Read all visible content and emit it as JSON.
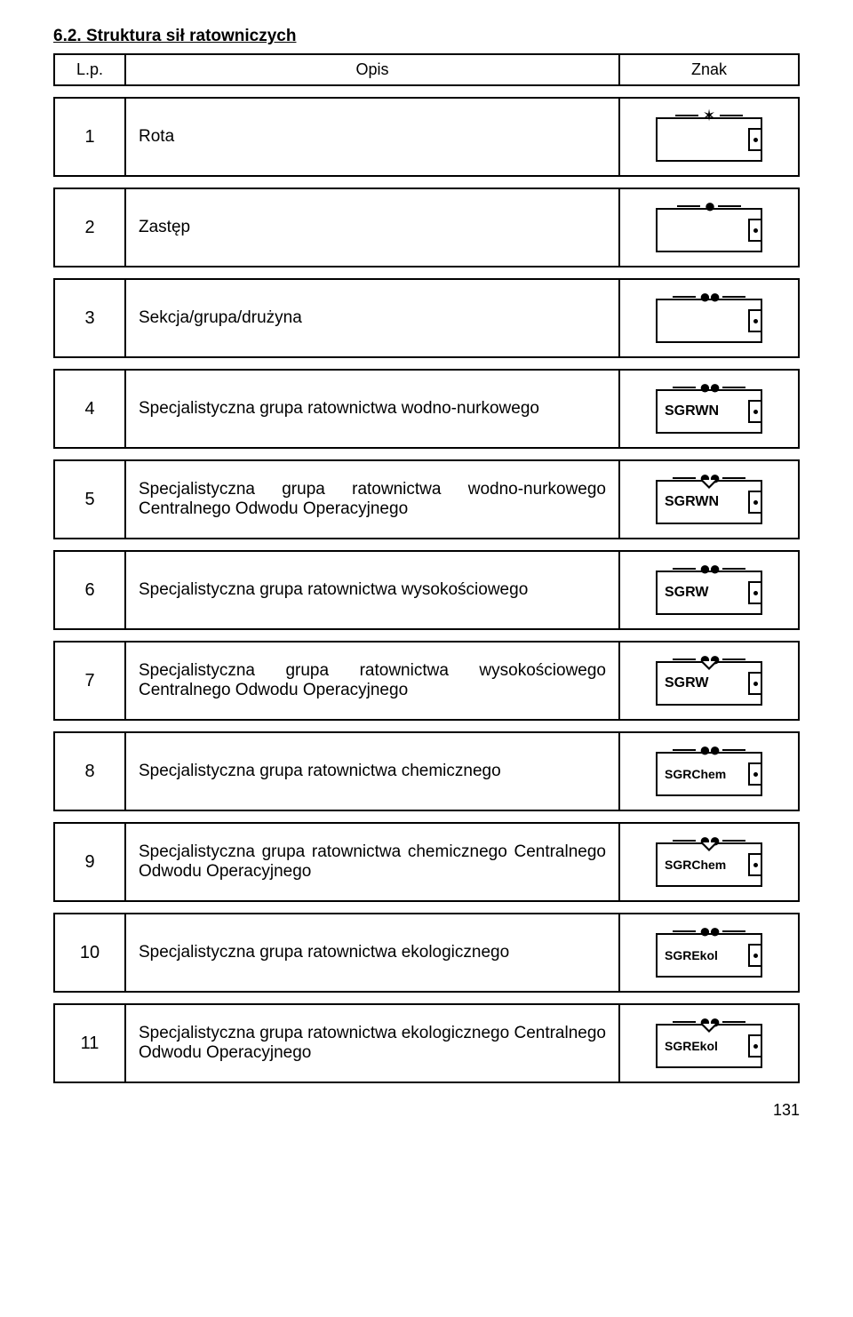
{
  "heading": "6.2. Struktura sił ratowniczych",
  "header": {
    "lp": "L.p.",
    "opis": "Opis",
    "znak": "Znak"
  },
  "rows": [
    {
      "lp": "1",
      "opis": "Rota",
      "symbol": {
        "topType": "star",
        "label": "",
        "triangle": false
      }
    },
    {
      "lp": "2",
      "opis": "Zastęp",
      "symbol": {
        "topType": "dot1",
        "label": "",
        "triangle": false
      }
    },
    {
      "lp": "3",
      "opis": "Sekcja/grupa/drużyna",
      "symbol": {
        "topType": "dot2",
        "label": "",
        "triangle": false
      }
    },
    {
      "lp": "4",
      "opis": "Specjalistyczna grupa ratownictwa wodno-nurkowego",
      "symbol": {
        "topType": "dot2",
        "label": "SGRWN",
        "triangle": false
      }
    },
    {
      "lp": "5",
      "opis": "Specjalistyczna grupa ratownictwa wodno-nurkowego Centralnego Odwodu Operacyjnego",
      "symbol": {
        "topType": "dot2",
        "label": "SGRWN",
        "triangle": true
      }
    },
    {
      "lp": "6",
      "opis": "Specjalistyczna grupa ratownictwa wysokościowego",
      "symbol": {
        "topType": "dot2",
        "label": "SGRW",
        "triangle": false
      }
    },
    {
      "lp": "7",
      "opis": "Specjalistyczna grupa ratownictwa wysokościowego Centralnego Odwodu Operacyjnego",
      "symbol": {
        "topType": "dot2",
        "label": "SGRW",
        "triangle": true
      }
    },
    {
      "lp": "8",
      "opis": "Specjalistyczna grupa ratownictwa chemicznego",
      "symbol": {
        "topType": "dot2",
        "label": "SGRChem",
        "triangle": false,
        "smallLabel": true
      }
    },
    {
      "lp": "9",
      "opis": "Specjalistyczna grupa ratownictwa chemicznego Centralnego Odwodu Operacyjnego",
      "symbol": {
        "topType": "dot2",
        "label": "SGRChem",
        "triangle": true,
        "smallLabel": true
      }
    },
    {
      "lp": "10",
      "opis": "Specjalistyczna grupa ratownictwa ekologicznego",
      "symbol": {
        "topType": "dot2",
        "label": "SGREkol",
        "triangle": false,
        "smallLabel": true
      }
    },
    {
      "lp": "11",
      "opis": "Specjalistyczna grupa ratownictwa ekologicznego Centralnego Odwodu Operacyjnego",
      "symbol": {
        "topType": "dot2",
        "label": "SGREkol",
        "triangle": true,
        "smallLabel": true
      }
    }
  ],
  "pageNumber": "131"
}
